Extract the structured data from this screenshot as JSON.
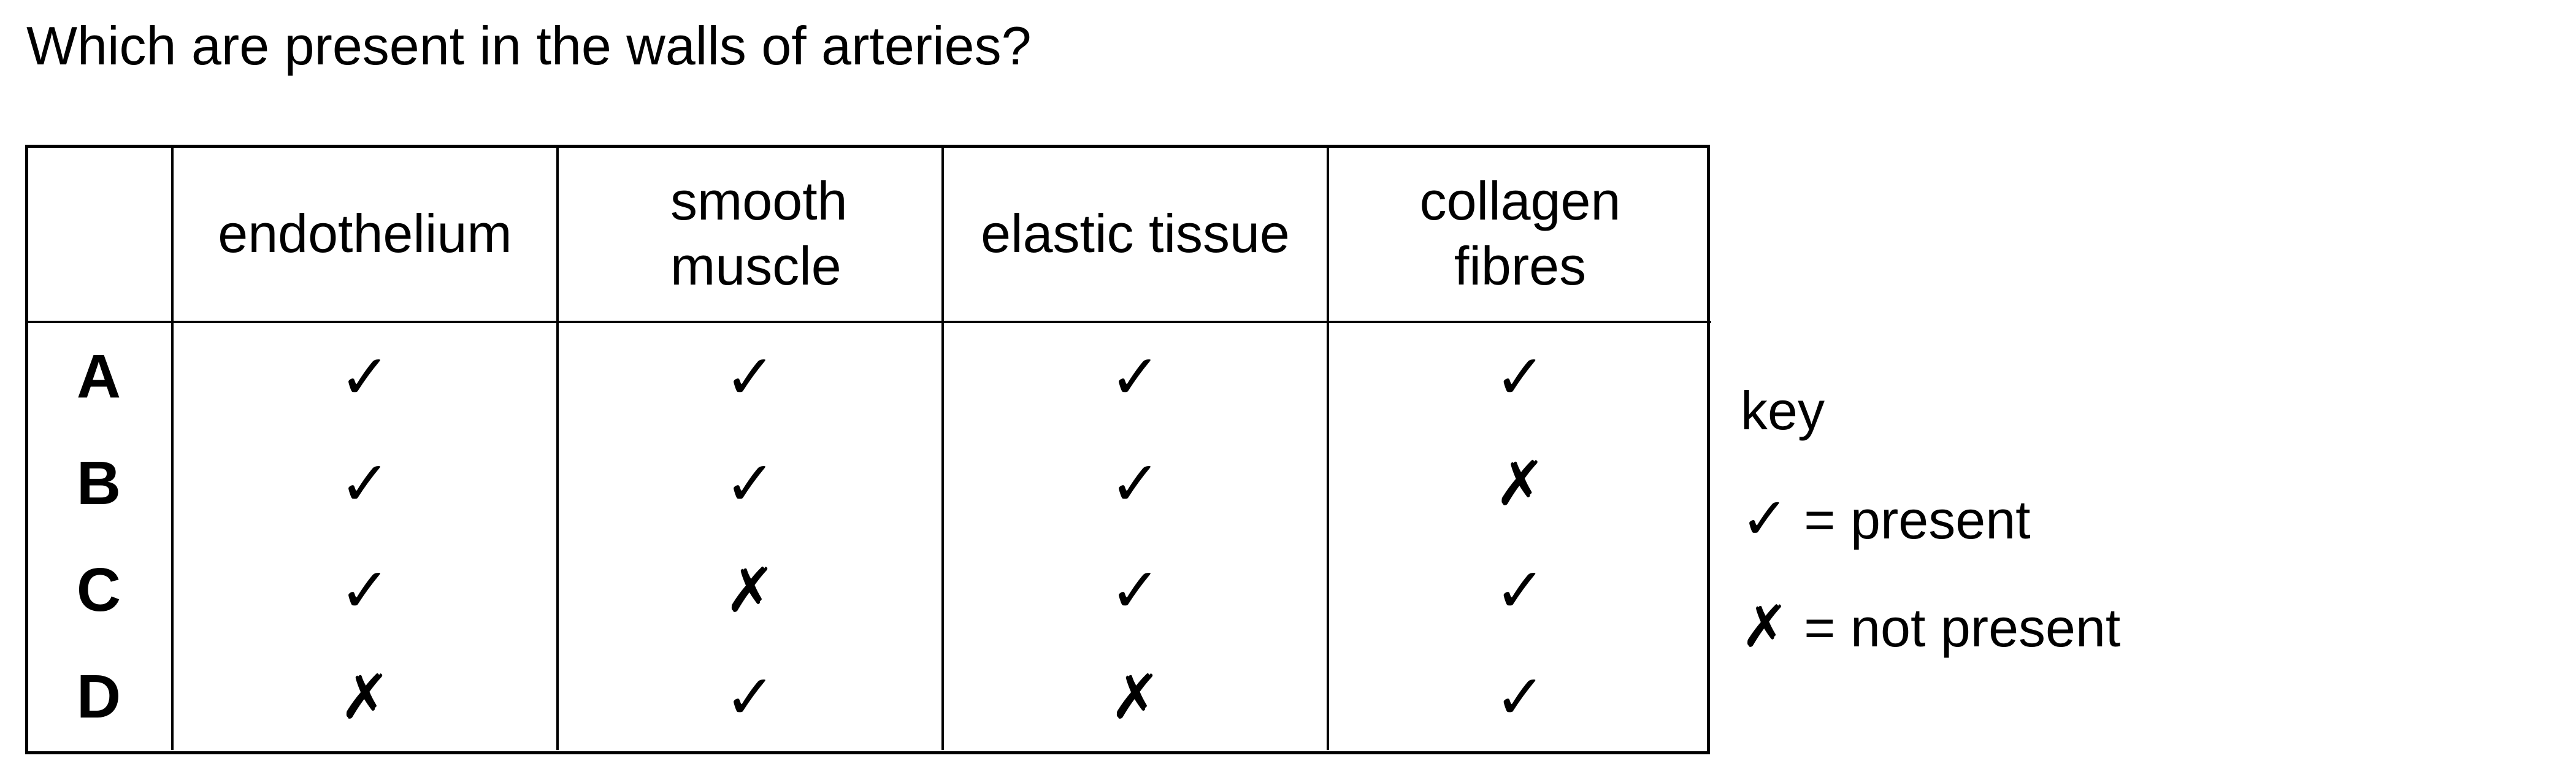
{
  "question": "Which are present in the walls of arteries?",
  "table": {
    "headers": [
      "",
      "endothelium",
      "smooth muscle",
      "elastic tissue",
      "collagen fibres"
    ],
    "rows": [
      {
        "letter": "A",
        "cells": [
          "✓",
          "✓",
          "✓",
          "✓"
        ]
      },
      {
        "letter": "B",
        "cells": [
          "✓",
          "✓",
          "✓",
          "✗"
        ]
      },
      {
        "letter": "C",
        "cells": [
          "✓",
          "✗",
          "✓",
          "✓"
        ]
      },
      {
        "letter": "D",
        "cells": [
          "✗",
          "✓",
          "✗",
          "✓"
        ]
      }
    ]
  },
  "key": {
    "title": "key",
    "present_symbol": "✓",
    "present_text": "= present",
    "absent_symbol": "✗",
    "absent_text": "= not present"
  }
}
